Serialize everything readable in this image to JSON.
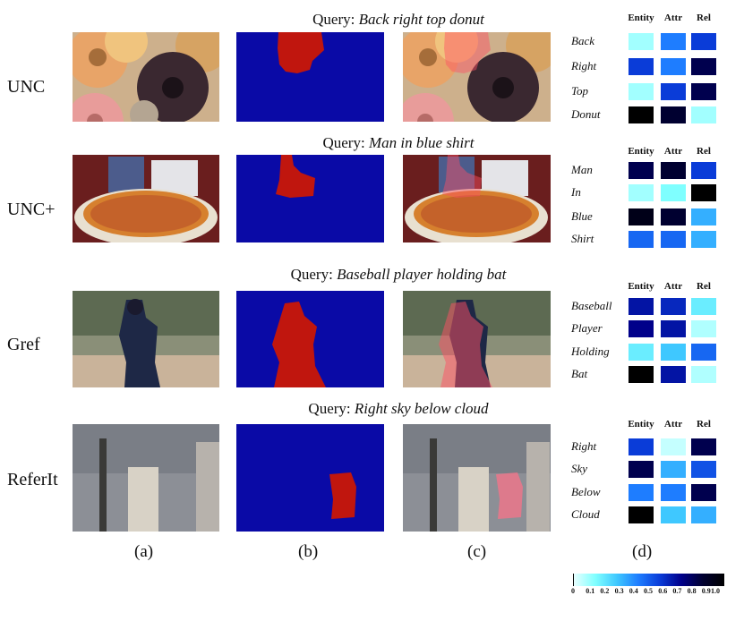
{
  "rows": [
    {
      "dataset": "UNC",
      "query_prefix": "Query: ",
      "query_text": "Back right top donut",
      "words": [
        "Back",
        "Right",
        "Top",
        "Donut"
      ],
      "weights": [
        [
          0.1,
          0.45,
          0.6
        ],
        [
          0.6,
          0.45,
          0.85
        ],
        [
          0.1,
          0.6,
          0.85
        ],
        [
          1.0,
          0.9,
          0.1
        ]
      ]
    },
    {
      "dataset": "UNC+",
      "query_prefix": "Query: ",
      "query_text": "Man in blue shirt",
      "words": [
        "Man",
        "In",
        "Blue",
        "Shirt"
      ],
      "weights": [
        [
          0.85,
          0.9,
          0.6
        ],
        [
          0.1,
          0.15,
          1.0
        ],
        [
          0.95,
          0.9,
          0.35
        ],
        [
          0.5,
          0.5,
          0.35
        ]
      ]
    },
    {
      "dataset": "Gref",
      "query_prefix": "Query: ",
      "query_text": "Baseball player holding bat",
      "words": [
        "Baseball",
        "Player",
        "Holding",
        "Bat"
      ],
      "weights": [
        [
          0.7,
          0.65,
          0.2
        ],
        [
          0.75,
          0.7,
          0.08
        ],
        [
          0.2,
          0.3,
          0.5
        ],
        [
          1.0,
          0.7,
          0.08
        ]
      ]
    },
    {
      "dataset": "ReferIt",
      "query_prefix": "Query: ",
      "query_text": "Right sky below cloud",
      "words": [
        "Right",
        "Sky",
        "Below",
        "Cloud"
      ],
      "weights": [
        [
          0.6,
          0.05,
          0.85
        ],
        [
          0.85,
          0.35,
          0.55
        ],
        [
          0.45,
          0.45,
          0.85
        ],
        [
          1.0,
          0.3,
          0.35
        ]
      ]
    }
  ],
  "column_headers": [
    "Entity",
    "Attr",
    "Rel"
  ],
  "column_labels": [
    "(a)",
    "(b)",
    "(c)",
    "(d)"
  ],
  "colorbar": {
    "ticks": [
      "0",
      "0.1",
      "0.2",
      "0.3",
      "0.4",
      "0.5",
      "0.6",
      "0.7",
      "0.8",
      "0.9",
      "1.0"
    ],
    "stops": [
      "#e8ffff",
      "#7fffff",
      "#3fc8ff",
      "#1e7dff",
      "#0a3cd8",
      "#00008a",
      "#000030",
      "#000000"
    ]
  },
  "colors": {
    "mask_background": "#0a0aa6",
    "mask_foreground": "#c0160e",
    "overlay_tint": "#ff4f63"
  }
}
